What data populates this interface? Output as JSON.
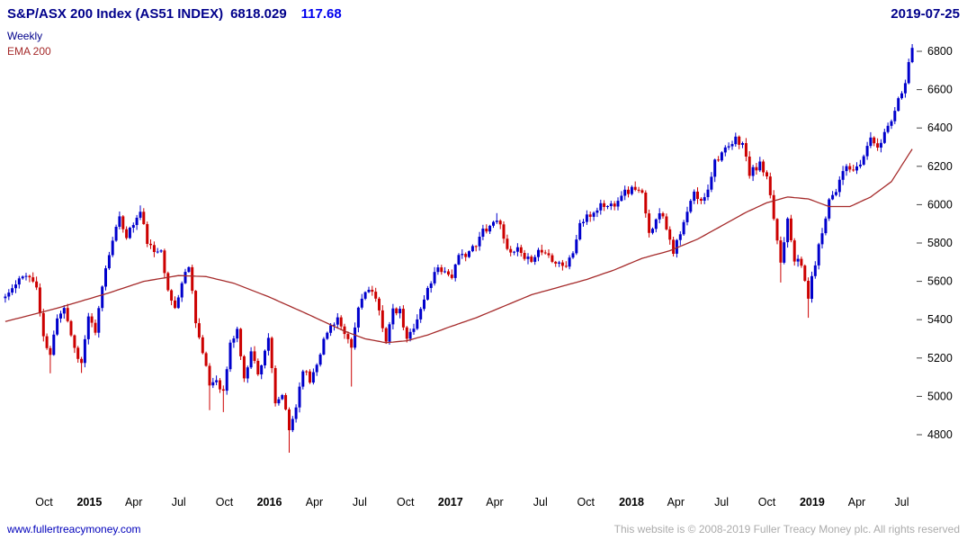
{
  "header": {
    "title": "S&P/ASX 200 Index (AS51 INDEX)",
    "last_value": "6818.029",
    "change": "117.68",
    "date": "2019-07-25"
  },
  "legend": {
    "frequency": "Weekly",
    "overlay": "EMA 200"
  },
  "footer": {
    "link": "www.fullertreacymoney.com",
    "copyright": "This website is © 2008-2019 Fuller Treacy Money plc. All rights reserved"
  },
  "colors": {
    "title_navy": "#00008B",
    "change_blue": "#0000EE",
    "up_candle": "#0000CC",
    "down_candle": "#CC0000",
    "ema_line": "#A52A2A",
    "axis_text": "#000000",
    "tick_mark": "#444444",
    "footer_gray": "#ABABAB",
    "link_blue": "#0000BB"
  },
  "chart_data": {
    "type": "candlestick",
    "frequency": "weekly",
    "title": "S&P/ASX 200 Index (AS51 INDEX)",
    "overlay": "EMA 200",
    "x_range": [
      "2014-07",
      "2019-07-25"
    ],
    "num_weeks": 263,
    "y_ticks": [
      4800,
      5000,
      5200,
      5400,
      5600,
      5800,
      6000,
      6200,
      6400,
      6600,
      6800
    ],
    "x_ticks": [
      {
        "label": "Oct",
        "week": 11.2
      },
      {
        "label": "2015",
        "week": 24.3,
        "year": true
      },
      {
        "label": "Apr",
        "week": 37.1
      },
      {
        "label": "Jul",
        "week": 50.1
      },
      {
        "label": "Oct",
        "week": 63.3
      },
      {
        "label": "2016",
        "week": 76.3,
        "year": true
      },
      {
        "label": "Apr",
        "week": 89.3
      },
      {
        "label": "Jul",
        "week": 102.4
      },
      {
        "label": "Oct",
        "week": 115.6
      },
      {
        "label": "2017",
        "week": 128.6,
        "year": true
      },
      {
        "label": "Apr",
        "week": 141.4
      },
      {
        "label": "Jul",
        "week": 154.6
      },
      {
        "label": "Oct",
        "week": 167.7
      },
      {
        "label": "2018",
        "week": 180.9,
        "year": true
      },
      {
        "label": "Apr",
        "week": 193.7
      },
      {
        "label": "Jul",
        "week": 206.9
      },
      {
        "label": "Oct",
        "week": 220.0
      },
      {
        "label": "2019",
        "week": 233.1,
        "year": true
      },
      {
        "label": "Apr",
        "week": 246.0
      },
      {
        "label": "Jul",
        "week": 259.0
      }
    ],
    "close_anchors": [
      [
        0,
        5520
      ],
      [
        3,
        5580
      ],
      [
        6,
        5645
      ],
      [
        9,
        5570
      ],
      [
        11,
        5300
      ],
      [
        13,
        5210
      ],
      [
        15,
        5420
      ],
      [
        17,
        5470
      ],
      [
        20,
        5250
      ],
      [
        22,
        5170
      ],
      [
        24,
        5420
      ],
      [
        26,
        5320
      ],
      [
        28,
        5580
      ],
      [
        31,
        5830
      ],
      [
        33,
        5920
      ],
      [
        35,
        5840
      ],
      [
        37,
        5900
      ],
      [
        39,
        5960
      ],
      [
        41,
        5810
      ],
      [
        43,
        5740
      ],
      [
        45,
        5780
      ],
      [
        47,
        5540
      ],
      [
        49,
        5460
      ],
      [
        51,
        5590
      ],
      [
        53,
        5690
      ],
      [
        55,
        5400
      ],
      [
        57,
        5220
      ],
      [
        59,
        5060
      ],
      [
        61,
        5090
      ],
      [
        63,
        5020
      ],
      [
        65,
        5270
      ],
      [
        67,
        5350
      ],
      [
        69,
        5080
      ],
      [
        71,
        5250
      ],
      [
        73,
        5110
      ],
      [
        76,
        5310
      ],
      [
        78,
        4950
      ],
      [
        80,
        5010
      ],
      [
        82,
        4820
      ],
      [
        84,
        4950
      ],
      [
        86,
        5150
      ],
      [
        88,
        5080
      ],
      [
        90,
        5180
      ],
      [
        92,
        5290
      ],
      [
        94,
        5370
      ],
      [
        96,
        5410
      ],
      [
        98,
        5310
      ],
      [
        100,
        5250
      ],
      [
        102,
        5460
      ],
      [
        104,
        5560
      ],
      [
        106,
        5540
      ],
      [
        108,
        5440
      ],
      [
        110,
        5300
      ],
      [
        112,
        5440
      ],
      [
        114,
        5440
      ],
      [
        116,
        5290
      ],
      [
        118,
        5370
      ],
      [
        120,
        5450
      ],
      [
        122,
        5560
      ],
      [
        125,
        5680
      ],
      [
        127,
        5650
      ],
      [
        129,
        5630
      ],
      [
        131,
        5720
      ],
      [
        134,
        5760
      ],
      [
        136,
        5780
      ],
      [
        138,
        5870
      ],
      [
        140,
        5890
      ],
      [
        142,
        5930
      ],
      [
        144,
        5840
      ],
      [
        146,
        5730
      ],
      [
        148,
        5770
      ],
      [
        150,
        5700
      ],
      [
        152,
        5720
      ],
      [
        154,
        5760
      ],
      [
        156,
        5750
      ],
      [
        158,
        5720
      ],
      [
        160,
        5700
      ],
      [
        162,
        5680
      ],
      [
        164,
        5750
      ],
      [
        166,
        5900
      ],
      [
        168,
        5930
      ],
      [
        170,
        5960
      ],
      [
        172,
        6000
      ],
      [
        174,
        5990
      ],
      [
        176,
        6010
      ],
      [
        178,
        6060
      ],
      [
        180,
        6070
      ],
      [
        182,
        6090
      ],
      [
        184,
        6050
      ],
      [
        186,
        5840
      ],
      [
        188,
        5940
      ],
      [
        190,
        5950
      ],
      [
        193,
        5760
      ],
      [
        195,
        5840
      ],
      [
        197,
        5960
      ],
      [
        199,
        6060
      ],
      [
        201,
        6010
      ],
      [
        203,
        6090
      ],
      [
        205,
        6230
      ],
      [
        207,
        6270
      ],
      [
        209,
        6290
      ],
      [
        211,
        6340
      ],
      [
        213,
        6320
      ],
      [
        215,
        6160
      ],
      [
        218,
        6210
      ],
      [
        220,
        6130
      ],
      [
        222,
        5930
      ],
      [
        224,
        5700
      ],
      [
        226,
        5940
      ],
      [
        228,
        5720
      ],
      [
        230,
        5680
      ],
      [
        232,
        5520
      ],
      [
        234,
        5700
      ],
      [
        236,
        5860
      ],
      [
        238,
        6030
      ],
      [
        240,
        6080
      ],
      [
        242,
        6190
      ],
      [
        244,
        6180
      ],
      [
        246,
        6180
      ],
      [
        248,
        6250
      ],
      [
        250,
        6360
      ],
      [
        252,
        6280
      ],
      [
        254,
        6380
      ],
      [
        256,
        6450
      ],
      [
        258,
        6550
      ],
      [
        260,
        6650
      ],
      [
        262,
        6818
      ]
    ],
    "ema200_anchors": [
      [
        0,
        5390
      ],
      [
        15,
        5460
      ],
      [
        30,
        5540
      ],
      [
        40,
        5600
      ],
      [
        50,
        5630
      ],
      [
        58,
        5625
      ],
      [
        66,
        5590
      ],
      [
        76,
        5520
      ],
      [
        86,
        5440
      ],
      [
        92,
        5390
      ],
      [
        98,
        5340
      ],
      [
        104,
        5300
      ],
      [
        110,
        5280
      ],
      [
        116,
        5290
      ],
      [
        122,
        5320
      ],
      [
        128,
        5360
      ],
      [
        136,
        5410
      ],
      [
        144,
        5470
      ],
      [
        152,
        5530
      ],
      [
        160,
        5570
      ],
      [
        168,
        5610
      ],
      [
        176,
        5660
      ],
      [
        184,
        5720
      ],
      [
        192,
        5760
      ],
      [
        200,
        5820
      ],
      [
        208,
        5900
      ],
      [
        214,
        5960
      ],
      [
        220,
        6010
      ],
      [
        226,
        6040
      ],
      [
        232,
        6030
      ],
      [
        238,
        5990
      ],
      [
        244,
        5990
      ],
      [
        250,
        6040
      ],
      [
        256,
        6120
      ],
      [
        262,
        6290
      ]
    ],
    "low_wick_overrides": [
      [
        13,
        5120
      ],
      [
        22,
        5122
      ],
      [
        59,
        4928
      ],
      [
        63,
        4918
      ],
      [
        82,
        4706
      ],
      [
        100,
        5051
      ],
      [
        224,
        5594
      ],
      [
        232,
        5410
      ]
    ],
    "high_wick_overrides": [
      [
        39,
        5996
      ],
      [
        142,
        5956
      ],
      [
        182,
        6121
      ],
      [
        211,
        6373
      ],
      [
        262,
        6818
      ]
    ],
    "render": {
      "noise_seed": 11,
      "noise_amp": 20,
      "wick_min": 4,
      "wick_rand": 24,
      "pin_last_close": 6818.03
    }
  }
}
